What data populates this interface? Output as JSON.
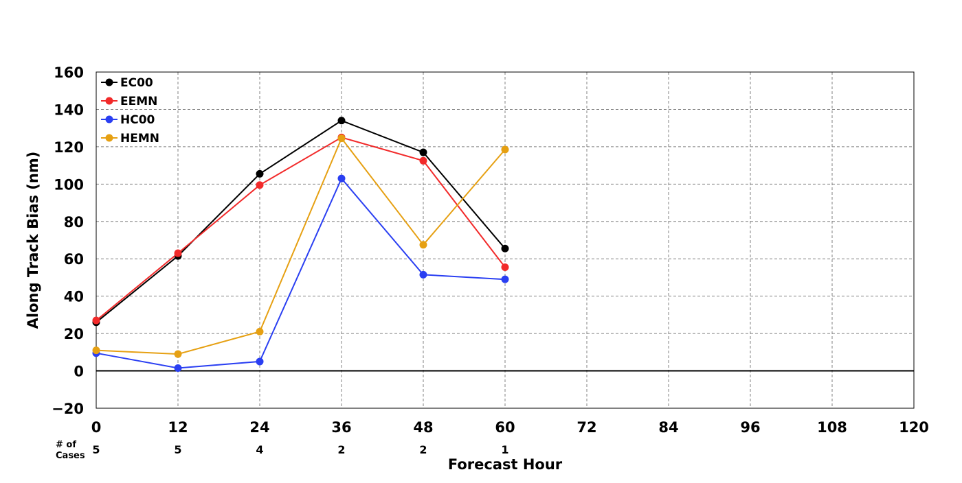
{
  "chart_data": {
    "type": "line",
    "title": "",
    "xlabel": "Forecast Hour",
    "ylabel": "Along Track Bias (nm)",
    "xlim": [
      0,
      120
    ],
    "ylim": [
      -20,
      160
    ],
    "x_ticks": [
      0,
      12,
      24,
      36,
      48,
      60,
      72,
      84,
      96,
      108,
      120
    ],
    "x_tick_labels": [
      "0",
      "12",
      "24",
      "36",
      "48",
      "60",
      "72",
      "84",
      "96",
      "108",
      "120"
    ],
    "y_ticks": [
      -20,
      0,
      20,
      40,
      60,
      80,
      100,
      120,
      140,
      160
    ],
    "y_tick_labels": [
      "−20",
      "0",
      "20",
      "40",
      "60",
      "80",
      "100",
      "120",
      "140",
      "160"
    ],
    "grid": true,
    "grid_style": "dashed",
    "zero_line": true,
    "legend_position": "top-left",
    "cases": {
      "label_line1": "# of",
      "label_line2": "Cases",
      "x": [
        0,
        12,
        24,
        36,
        48,
        60
      ],
      "values": [
        "5",
        "5",
        "4",
        "2",
        "2",
        "1"
      ]
    },
    "series": [
      {
        "name": "EC00",
        "color": "#000000",
        "x": [
          0,
          12,
          24,
          36,
          48,
          60
        ],
        "values": [
          26,
          61.5,
          105.5,
          134,
          117,
          65.5
        ]
      },
      {
        "name": "EEMN",
        "color": "#f22a2a",
        "x": [
          0,
          12,
          24,
          36,
          48,
          60
        ],
        "values": [
          27,
          63,
          99.5,
          125,
          112.5,
          55.5
        ]
      },
      {
        "name": "HC00",
        "color": "#2a3ff2",
        "x": [
          0,
          12,
          24,
          36,
          48,
          60
        ],
        "values": [
          9.5,
          1.5,
          5,
          103,
          51.5,
          49
        ]
      },
      {
        "name": "HEMN",
        "color": "#e6a012",
        "x": [
          0,
          12,
          24,
          36,
          48,
          60
        ],
        "values": [
          11,
          9,
          21,
          124.5,
          67.5,
          118.5
        ]
      }
    ]
  }
}
